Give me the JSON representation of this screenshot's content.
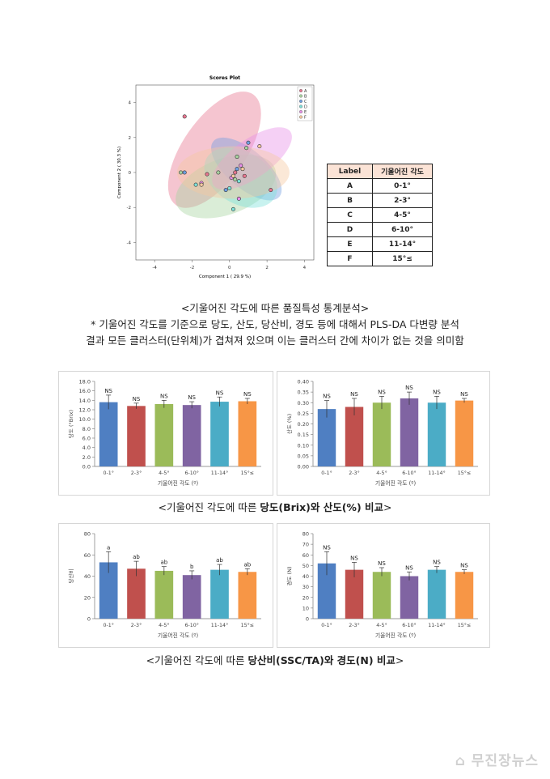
{
  "scores_plot": {
    "title": "Scores Plot",
    "xlabel": "Component 1 ( 29.9 %)",
    "ylabel": "Component 2 ( 30.3 %)",
    "legend": [
      "A",
      "B",
      "C",
      "D",
      "E",
      "F"
    ],
    "colors": [
      "#e8758f",
      "#a8d3a0",
      "#6f9ee0",
      "#7de0d8",
      "#e88fe8",
      "#f5c9a0"
    ]
  },
  "label_table": {
    "headers": [
      "Label",
      "기울어진 각도"
    ],
    "rows": [
      [
        "A",
        "0-1°"
      ],
      [
        "B",
        "2-3°"
      ],
      [
        "C",
        "4-5°"
      ],
      [
        "D",
        "6-10°"
      ],
      [
        "E",
        "11-14°"
      ],
      [
        "F",
        "15°≤"
      ]
    ]
  },
  "caption1": "<기울어진 각도에 따른 품질특성 통계분석>",
  "description_line1": "* 기울어진 각도를 기준으로 당도, 산도, 당산비, 경도 등에 대해서 PLS-DA 다변량 분석",
  "description_line2": "결과 모든 클러스터(단위체)가 겹쳐져 있으며 이는 클러스터 간에 차이가 없는 것을 의미함",
  "caption2": {
    "prefix": "<기울어진 각도에 따른 ",
    "bold": "당도(Brix)와 산도(%) 비교",
    "suffix": ">"
  },
  "caption3": {
    "prefix": "<기울어진 각도에 따른 ",
    "bold": "당산비(SSC/TA)와 경도(N) 비교",
    "suffix": ">"
  },
  "watermark": "무진장뉴스",
  "bar_colors": [
    "#4f7fc2",
    "#c0504d",
    "#9bbb59",
    "#8064a2",
    "#4bacc6",
    "#f79646"
  ],
  "chart_data": [
    {
      "type": "scatter",
      "title": "Scores Plot",
      "xlabel": "Component 1 ( 29.9 %)",
      "ylabel": "Component 2 ( 30.3 %)",
      "xlim": [
        -5,
        4.5
      ],
      "ylim": [
        -5,
        5
      ],
      "xticks": [
        "-4",
        "-2",
        "0",
        "2",
        "4"
      ],
      "yticks": [
        "4",
        "2",
        "0",
        "-2",
        "-4"
      ],
      "points": [
        [
          -2.4,
          3.2
        ],
        [
          -2.6,
          0.0
        ],
        [
          -2.4,
          0.0
        ],
        [
          -1.8,
          -0.7
        ],
        [
          -1.5,
          -0.6
        ],
        [
          -1.5,
          -0.7
        ],
        [
          -1.2,
          -0.1
        ],
        [
          -0.6,
          0.0
        ],
        [
          -0.2,
          -1.0
        ],
        [
          0.0,
          -0.9
        ],
        [
          0.1,
          -0.3
        ],
        [
          0.2,
          -0.2
        ],
        [
          0.3,
          0.0
        ],
        [
          0.3,
          -0.4
        ],
        [
          0.4,
          0.2
        ],
        [
          0.5,
          -0.5
        ],
        [
          0.6,
          0.4
        ],
        [
          0.7,
          0.2
        ],
        [
          0.8,
          -0.2
        ],
        [
          0.9,
          1.4
        ],
        [
          1.0,
          1.7
        ],
        [
          0.2,
          -2.1
        ],
        [
          0.5,
          -1.5
        ],
        [
          1.6,
          1.5
        ],
        [
          2.2,
          -1.0
        ],
        [
          0.4,
          0.9
        ]
      ]
    },
    {
      "type": "bar",
      "ylabel": "당도 (°Brix)",
      "xlabel": "기울어진 각도 (º)",
      "categories": [
        "0-1°",
        "2-3°",
        "4-5°",
        "6-10°",
        "11-14°",
        "15°≤"
      ],
      "values": [
        13.6,
        12.8,
        13.2,
        13.0,
        13.7,
        13.8
      ],
      "errors": [
        1.5,
        0.6,
        0.8,
        0.7,
        1.0,
        0.6
      ],
      "labels": [
        "NS",
        "NS",
        "NS",
        "NS",
        "NS",
        "NS"
      ],
      "ylim": [
        0,
        18
      ],
      "yticks": [
        "0.0",
        "2.0",
        "4.0",
        "6.0",
        "8.0",
        "10.0",
        "12.0",
        "14.0",
        "16.0",
        "18.0"
      ]
    },
    {
      "type": "bar",
      "ylabel": "산도 (%)",
      "xlabel": "기울어진 각도 (º)",
      "categories": [
        "0-1°",
        "2-3°",
        "4-5°",
        "6-10°",
        "11-14°",
        "15°≤"
      ],
      "values": [
        0.27,
        0.28,
        0.3,
        0.32,
        0.3,
        0.31
      ],
      "errors": [
        0.04,
        0.04,
        0.03,
        0.03,
        0.03,
        0.01
      ],
      "labels": [
        "NS",
        "NS",
        "NS",
        "NS",
        "NS",
        "NS"
      ],
      "ylim": [
        0,
        0.4
      ],
      "yticks": [
        "0.00",
        "0.05",
        "0.10",
        "0.15",
        "0.20",
        "0.25",
        "0.30",
        "0.35",
        "0.40"
      ]
    },
    {
      "type": "bar",
      "ylabel": "당산비",
      "xlabel": "기울어진 각도 (º)",
      "categories": [
        "0-1°",
        "2-3°",
        "4-5°",
        "6-10°",
        "11-14°",
        "15°≤"
      ],
      "values": [
        53,
        47,
        45,
        41,
        46,
        44
      ],
      "errors": [
        10,
        7,
        4,
        4,
        5,
        3
      ],
      "labels": [
        "a",
        "ab",
        "ab",
        "b",
        "ab",
        "ab"
      ],
      "ylim": [
        0,
        80
      ],
      "yticks": [
        "0",
        "20",
        "40",
        "60",
        "80"
      ]
    },
    {
      "type": "bar",
      "ylabel": "경도 (N)",
      "xlabel": "기울어진 각도 (º)",
      "categories": [
        "0-1°",
        "2-3°",
        "4-5°",
        "6-10°",
        "11-14°",
        "15°≤"
      ],
      "values": [
        52,
        46,
        44,
        40,
        46,
        44
      ],
      "errors": [
        11,
        7,
        4,
        4,
        3,
        2
      ],
      "labels": [
        "NS",
        "NS",
        "NS",
        "NS",
        "NS",
        "NS"
      ],
      "ylim": [
        0,
        80
      ],
      "yticks": [
        "0",
        "10",
        "20",
        "30",
        "40",
        "50",
        "60",
        "70",
        "80"
      ]
    }
  ]
}
